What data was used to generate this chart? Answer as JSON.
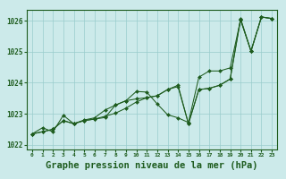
{
  "background_color": "#cceaea",
  "plot_bg_color": "#cceaea",
  "grid_color": "#99cccc",
  "line_color": "#1e5c1e",
  "marker_color": "#1e5c1e",
  "xlabel": "Graphe pression niveau de la mer (hPa)",
  "xlabel_fontsize": 7.5,
  "xlim": [
    -0.5,
    23.5
  ],
  "ylim": [
    1021.85,
    1026.35
  ],
  "yticks": [
    1022,
    1023,
    1024,
    1025,
    1026
  ],
  "xticks": [
    0,
    1,
    2,
    3,
    4,
    5,
    6,
    7,
    8,
    9,
    10,
    11,
    12,
    13,
    14,
    15,
    16,
    17,
    18,
    19,
    20,
    21,
    22,
    23
  ],
  "series": [
    [
      1022.35,
      1022.55,
      1022.42,
      1022.95,
      1022.68,
      1022.8,
      1022.87,
      1023.12,
      1023.28,
      1023.42,
      1023.72,
      1023.7,
      1023.32,
      1022.97,
      1022.87,
      1022.72,
      1024.18,
      1024.38,
      1024.38,
      1024.48,
      1026.03,
      1025.02,
      1026.12,
      1026.07
    ],
    [
      1022.35,
      1022.42,
      1022.5,
      1022.78,
      1022.68,
      1022.78,
      1022.83,
      1022.92,
      1023.02,
      1023.18,
      1023.38,
      1023.52,
      1023.58,
      1023.78,
      1023.92,
      1022.68,
      1023.78,
      1023.82,
      1023.92,
      1024.12,
      1026.03,
      1025.02,
      1026.12,
      1026.07
    ],
    [
      1022.35,
      1022.42,
      1022.5,
      1022.78,
      1022.68,
      1022.78,
      1022.83,
      1022.88,
      1023.28,
      1023.42,
      1023.48,
      1023.52,
      1023.58,
      1023.78,
      1023.88,
      1022.68,
      1023.78,
      1023.82,
      1023.92,
      1024.12,
      1026.07,
      1025.02,
      1026.12,
      1026.07
    ]
  ]
}
